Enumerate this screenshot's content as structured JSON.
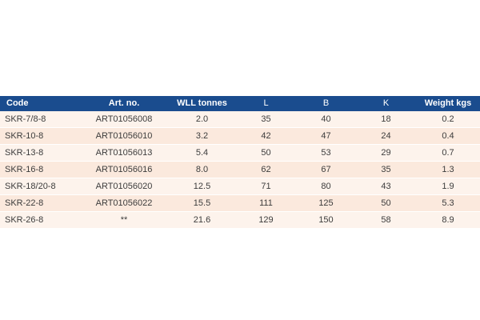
{
  "table": {
    "headers": [
      "Code",
      "Art. no.",
      "WLL tonnes",
      "L",
      "B",
      "K",
      "Weight kgs"
    ],
    "rows": [
      [
        "SKR-7/8-8",
        "ART01056008",
        "2.0",
        "35",
        "40",
        "18",
        "0.2"
      ],
      [
        "SKR-10-8",
        "ART01056010",
        "3.2",
        "42",
        "47",
        "24",
        "0.4"
      ],
      [
        "SKR-13-8",
        "ART01056013",
        "5.4",
        "50",
        "53",
        "29",
        "0.7"
      ],
      [
        "SKR-16-8",
        "ART01056016",
        "8.0",
        "62",
        "67",
        "35",
        "1.3"
      ],
      [
        "SKR-18/20-8",
        "ART01056020",
        "12.5",
        "71",
        "80",
        "43",
        "1.9"
      ],
      [
        "SKR-22-8",
        "ART01056022",
        "15.5",
        "111",
        "125",
        "50",
        "5.3"
      ],
      [
        "SKR-26-8",
        "**",
        "21.6",
        "129",
        "150",
        "58",
        "8.9"
      ]
    ]
  },
  "colors": {
    "header_bg": "#1a4c8e",
    "header_text": "#ffffff",
    "row_odd": "#fdf3ec",
    "row_even": "#fbe9dd"
  }
}
